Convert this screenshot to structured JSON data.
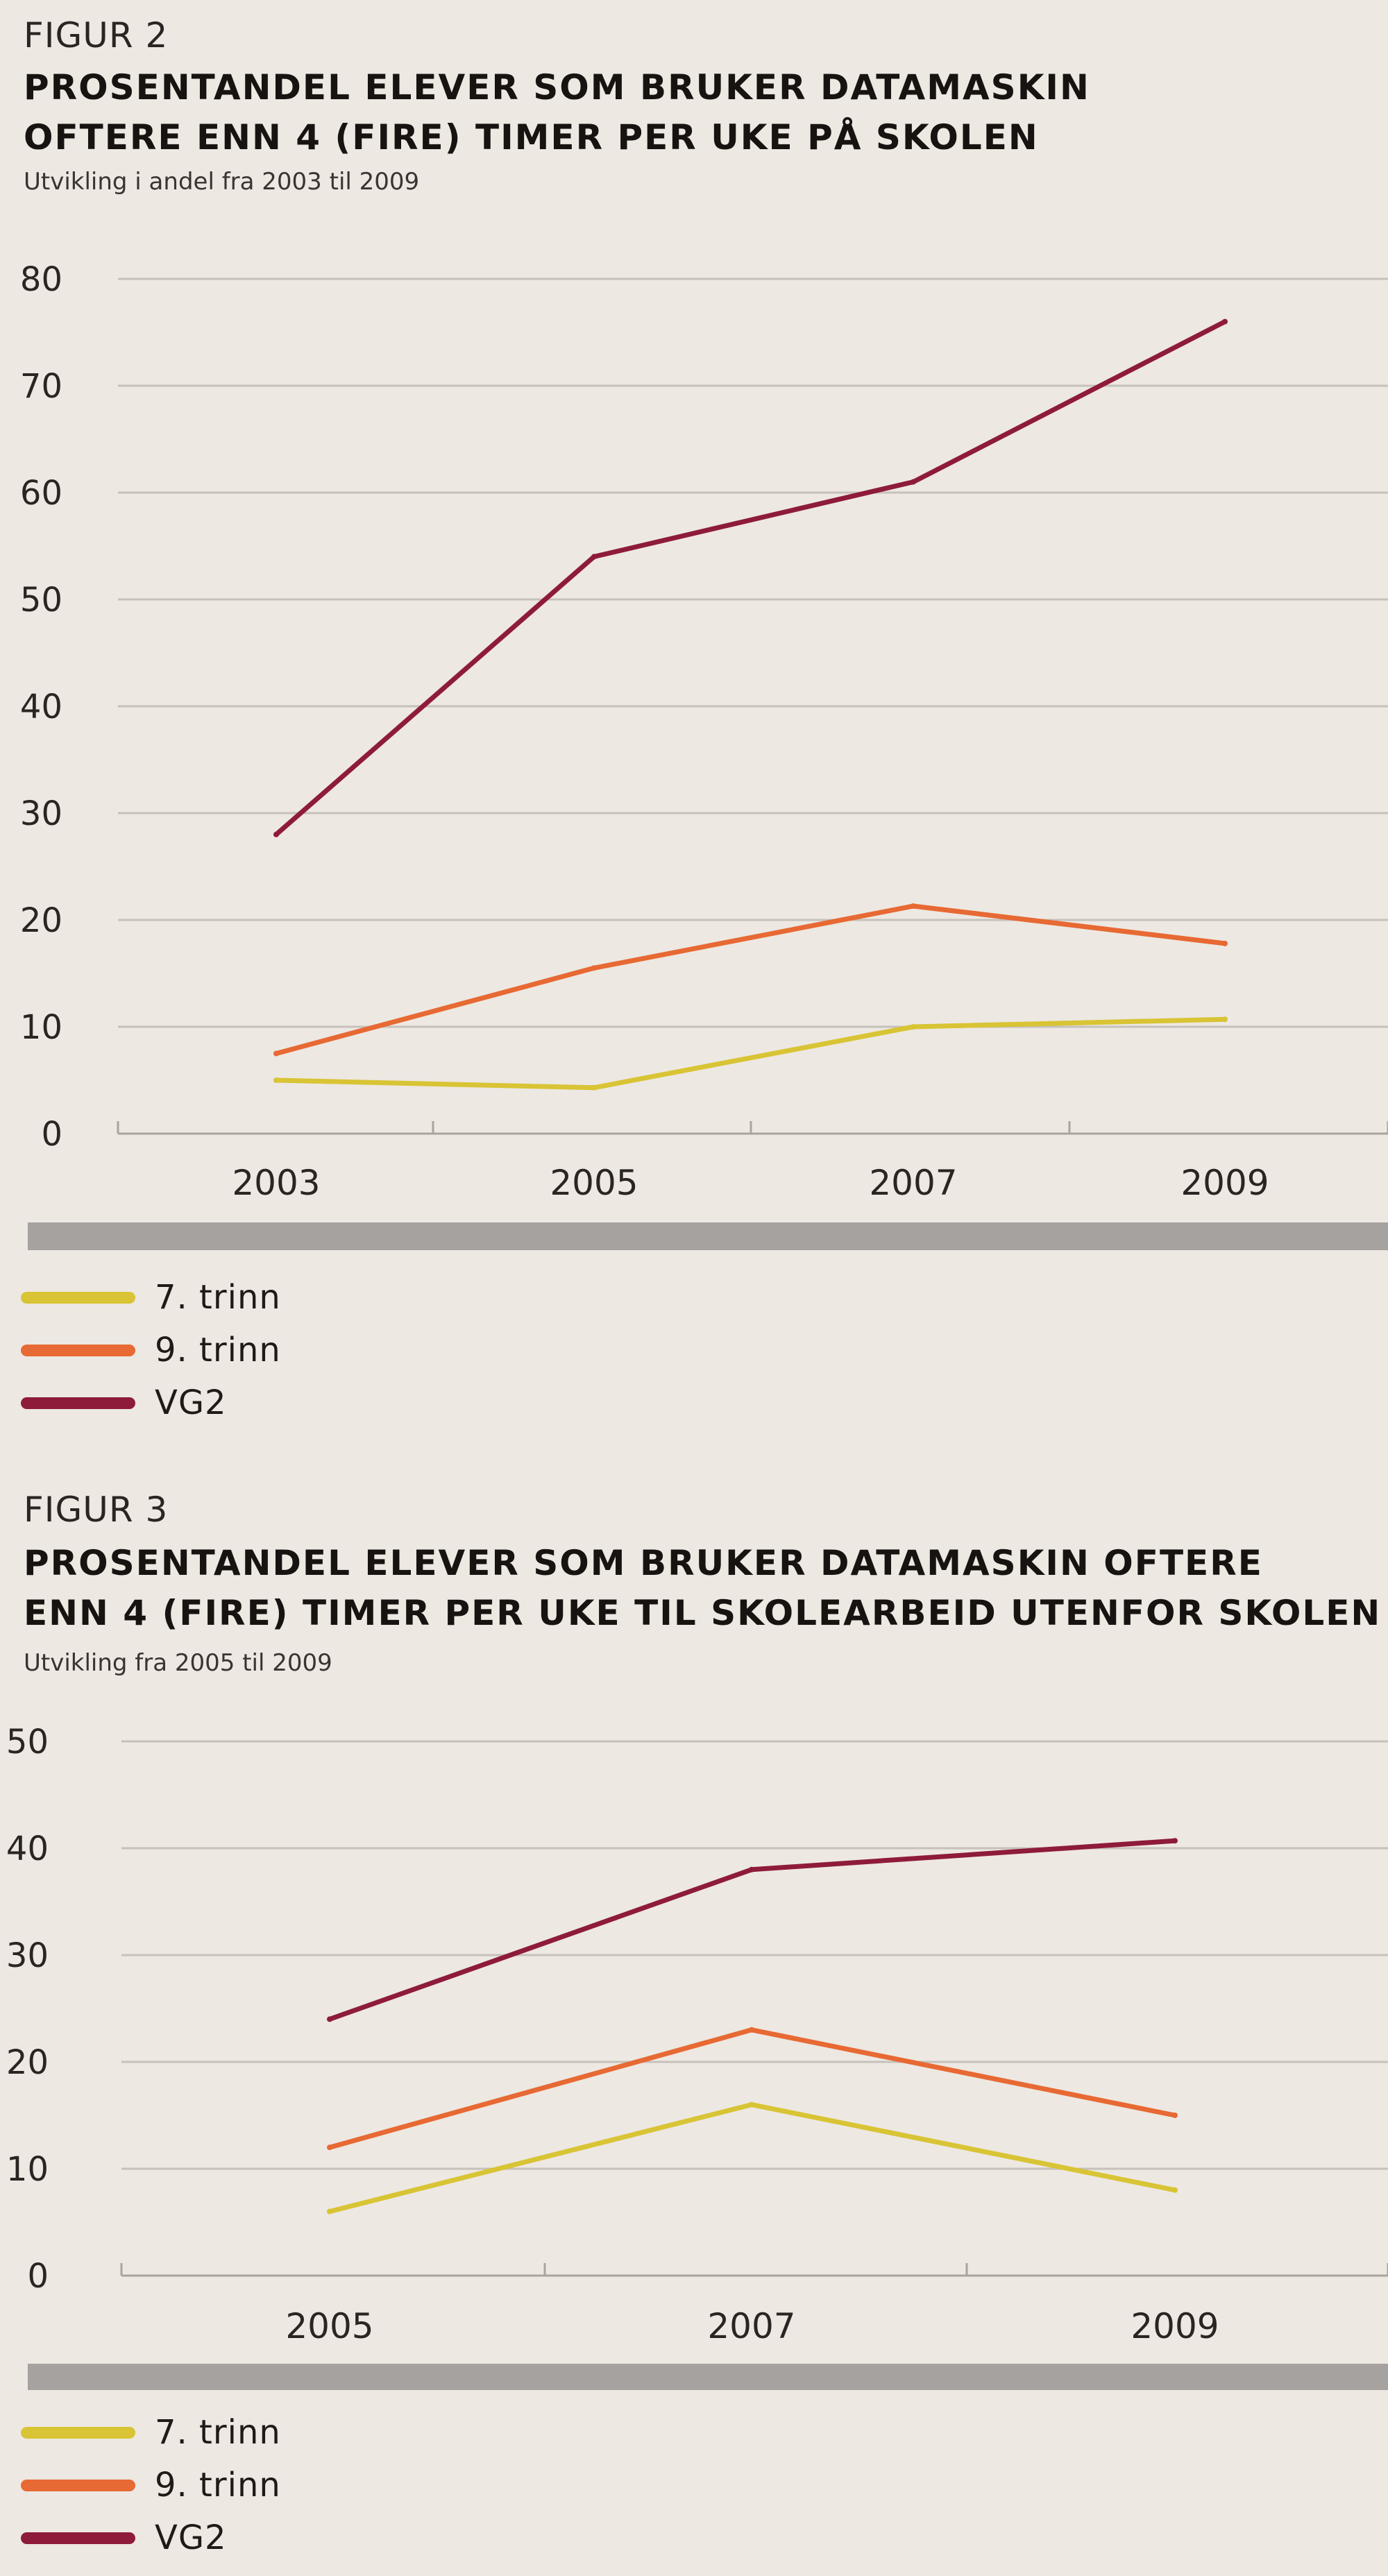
{
  "colors": {
    "background": "#ede8e2",
    "grid": "#c6c1bb",
    "axis": "#a9a49e",
    "band": "#a5a2a0",
    "series_7": "#d8c434",
    "series_9": "#e76933",
    "series_vg2": "#8e1b3a"
  },
  "chart_data": [
    {
      "type": "line",
      "figure_label": "FIGUR 2",
      "title_lines": [
        "PROSENTANDEL ELEVER SOM BRUKER DATAMASKIN",
        "OFTERE ENN 4 (FIRE) TIMER PER UKE PÅ SKOLEN"
      ],
      "subtitle": "Utvikling i andel fra 2003 til 2009",
      "x": [
        "2003",
        "2005",
        "2007",
        "2009"
      ],
      "yticks": [
        "0",
        "10",
        "20",
        "30",
        "40",
        "50",
        "60",
        "70",
        "80"
      ],
      "ylim": [
        0,
        80
      ],
      "grid": true,
      "legend_position": "bottom-left",
      "series": [
        {
          "name": "7. trinn",
          "values": [
            5,
            4.3,
            10,
            10.7
          ],
          "color_key": "series_7"
        },
        {
          "name": "9. trinn",
          "values": [
            7.5,
            15.5,
            21.3,
            17.8
          ],
          "color_key": "series_9"
        },
        {
          "name": "VG2",
          "values": [
            28,
            54,
            61,
            76
          ],
          "color_key": "series_vg2"
        }
      ]
    },
    {
      "type": "line",
      "figure_label": "FIGUR 3",
      "title_lines": [
        "PROSENTANDEL ELEVER SOM BRUKER DATAMASKIN OFTERE",
        "ENN 4 (FIRE) TIMER PER UKE TIL SKOLEARBEID UTENFOR SKOLEN"
      ],
      "subtitle": "Utvikling fra 2005 til 2009",
      "x": [
        "2005",
        "2007",
        "2009"
      ],
      "yticks": [
        "0",
        "10",
        "20",
        "30",
        "40",
        "50"
      ],
      "ylim": [
        0,
        50
      ],
      "grid": true,
      "legend_position": "bottom-left",
      "series": [
        {
          "name": "7. trinn",
          "values": [
            6,
            16,
            8
          ],
          "color_key": "series_7"
        },
        {
          "name": "9. trinn",
          "values": [
            12,
            23,
            15
          ],
          "color_key": "series_9"
        },
        {
          "name": "VG2",
          "values": [
            24,
            38,
            40.7
          ],
          "color_key": "series_vg2"
        }
      ]
    }
  ]
}
